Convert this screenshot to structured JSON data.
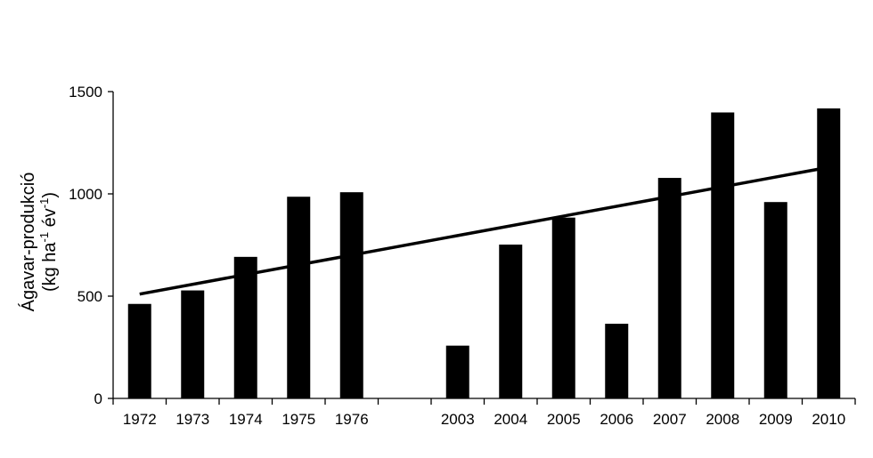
{
  "chart_data": {
    "type": "bar",
    "categories": [
      "1972",
      "1973",
      "1974",
      "1975",
      "1976",
      "",
      "2003",
      "2004",
      "2005",
      "2006",
      "2007",
      "2008",
      "2009",
      "2010"
    ],
    "values": [
      462,
      528,
      692,
      986,
      1008,
      null,
      258,
      752,
      884,
      365,
      1078,
      1398,
      960,
      1418
    ],
    "trendline": {
      "start": 510,
      "end": 1130
    },
    "ylabel": {
      "line1": "Ágavar-produkció",
      "line2_a": "(kg ha",
      "line2_sup1": "-1",
      "line2_b": " év",
      "line2_sup2": "-1",
      "line2_c": ")"
    },
    "ylim": [
      0,
      1500
    ],
    "yticks": [
      0,
      500,
      1000,
      1500
    ],
    "grid": false,
    "colors": {
      "bar": "#000000",
      "trend": "#000000",
      "axis": "#000000"
    }
  }
}
